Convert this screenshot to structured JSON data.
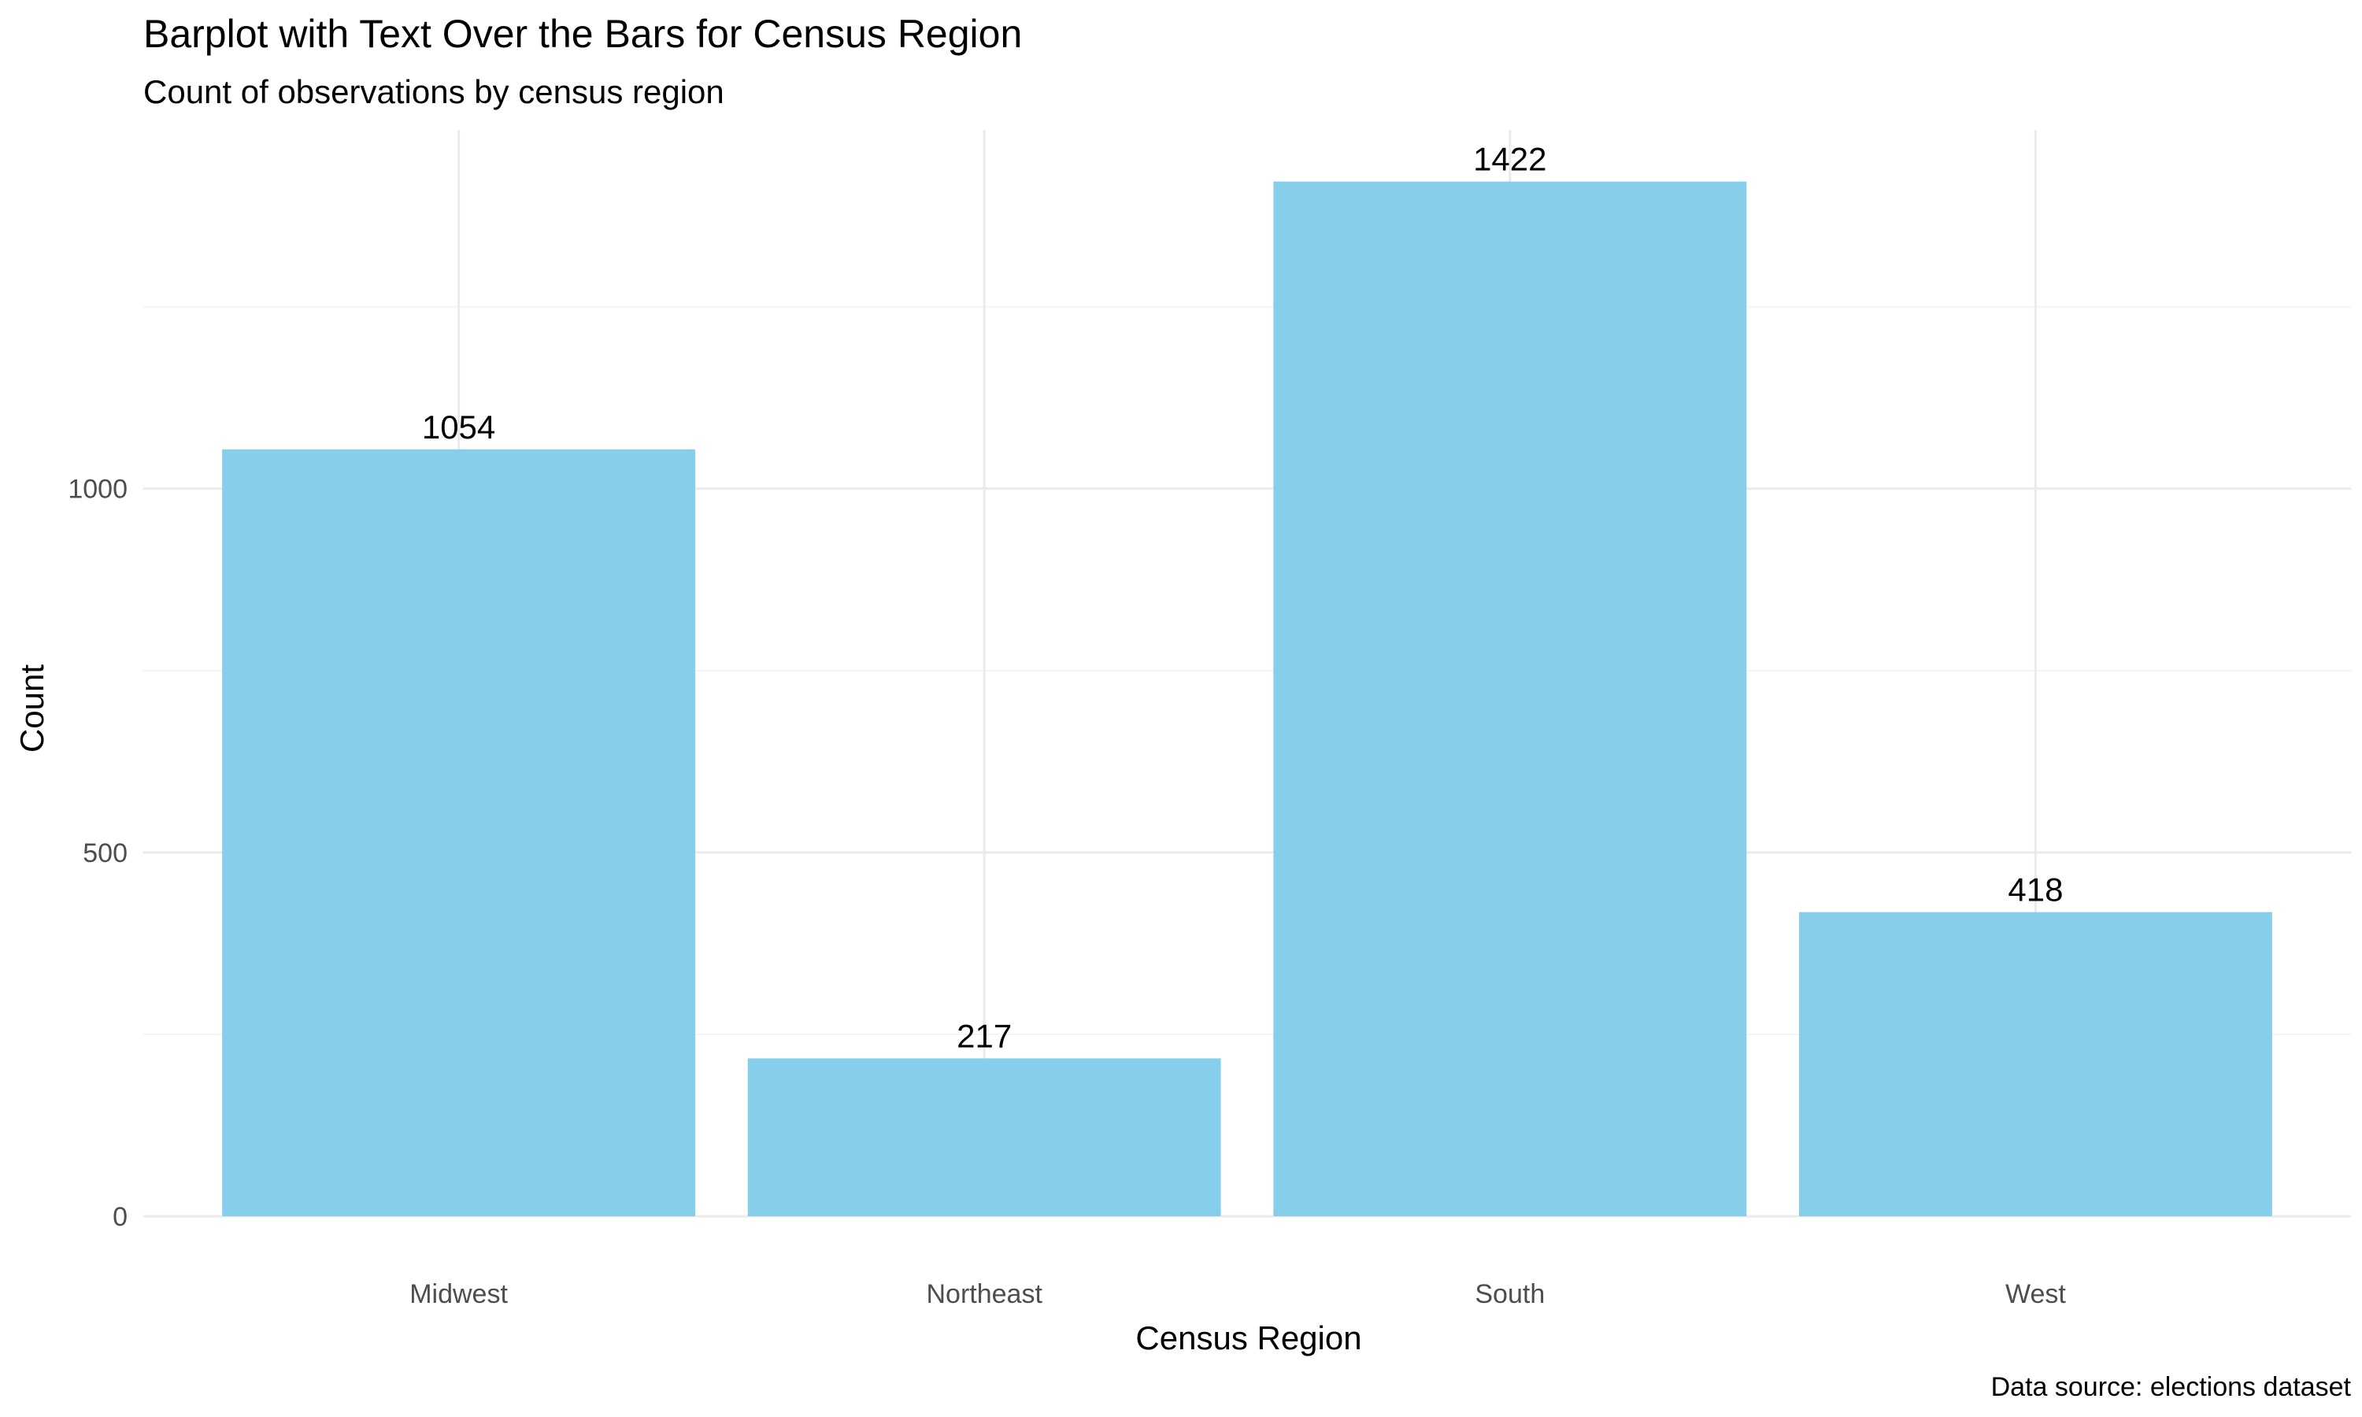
{
  "chart_data": {
    "type": "bar",
    "title": "Barplot with Text Over the Bars for Census Region",
    "subtitle": "Count of observations by census region",
    "xlabel": "Census Region",
    "ylabel": "Count",
    "caption": "Data source: elections dataset",
    "categories": [
      "Midwest",
      "Northeast",
      "South",
      "West"
    ],
    "values": [
      1054,
      217,
      1422,
      418
    ],
    "value_labels": [
      "1054",
      "217",
      "1422",
      "418"
    ],
    "y_ticks": [
      0,
      500,
      1000
    ],
    "y_tick_labels": [
      "0",
      "500",
      "1000"
    ],
    "ylim": [
      0,
      1493
    ],
    "grid": true,
    "legend": "none",
    "colors": {
      "bar": "#87CEEB",
      "grid_major": "#ebebeb",
      "grid_minor": "#f4f4f4",
      "tick_text": "#4d4d4d",
      "text": "#000000"
    }
  }
}
